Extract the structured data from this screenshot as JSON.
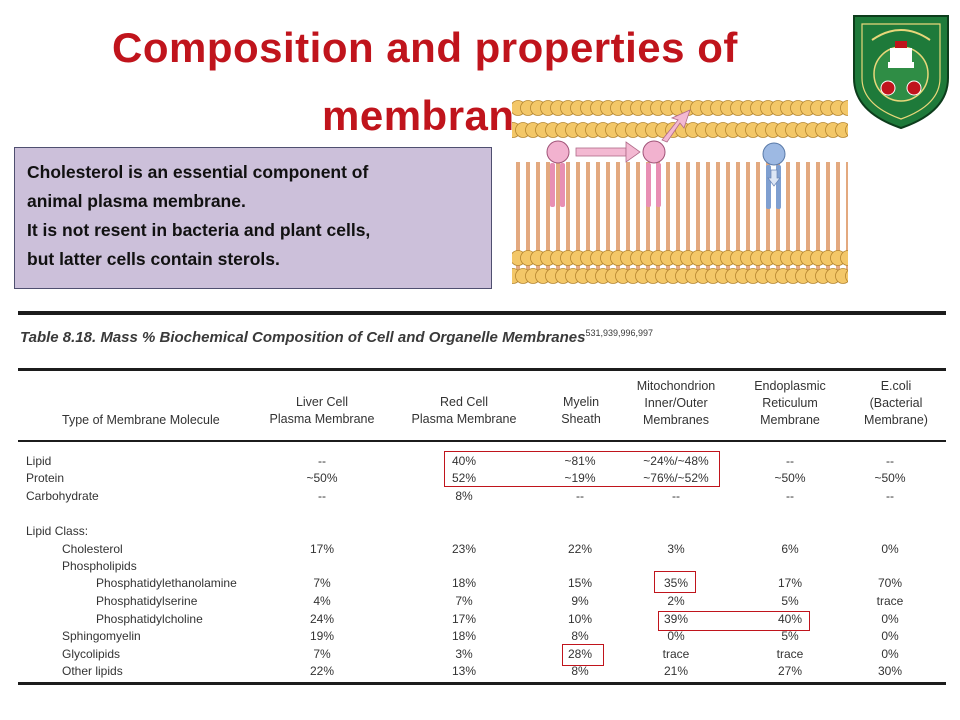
{
  "slide": {
    "title_line_1": "Composition and properties of",
    "title_line_2": "membranes",
    "callout_lines": [
      "Cholesterol is an essential component of",
      "animal plasma membrane.",
      "It is not resent in bacteria and plant cells,",
      "but latter cells  contain sterols."
    ]
  },
  "colors": {
    "title": "#c0141c",
    "callout_bg": "#ccc0da",
    "logo_green": "#1e7a3a",
    "highlight_box": "#c0141c"
  },
  "table": {
    "caption": "Table 8.18. Mass % Biochemical Composition of Cell and Organelle Membranes",
    "caption_refs": "531,939,996,997",
    "headers": [
      "Type of Membrane Molecule",
      "Liver Cell\nPlasma Membrane",
      "Red Cell\nPlasma Membrane",
      "Myelin\nSheath",
      "Mitochondrion\nInner/Outer\nMembranes",
      "Endoplasmic\nReticulum\nMembrane",
      "E.coli\n(Bacterial\nMembrane)"
    ],
    "rows": [
      {
        "label": "Lipid",
        "values": [
          "--",
          "40%",
          "~81%",
          "~24%/~48%",
          "--",
          "--"
        ]
      },
      {
        "label": "Protein",
        "values": [
          "~50%",
          "52%",
          "~19%",
          "~76%/~52%",
          "~50%",
          "~50%"
        ]
      },
      {
        "label": "Carbohydrate",
        "values": [
          "--",
          "8%",
          "--",
          "--",
          "--",
          "--"
        ]
      },
      {
        "label": "Lipid Class:",
        "values": [
          "",
          "",
          "",
          "",
          "",
          ""
        ]
      },
      {
        "label": "Cholesterol",
        "values": [
          "17%",
          "23%",
          "22%",
          "3%",
          "6%",
          "0%"
        ]
      },
      {
        "label": "Phospholipids",
        "values": [
          "",
          "",
          "",
          "",
          "",
          ""
        ]
      },
      {
        "label": "Phosphatidylethanolamine",
        "values": [
          "7%",
          "18%",
          "15%",
          "35%",
          "17%",
          "70%"
        ]
      },
      {
        "label": "Phosphatidylserine",
        "values": [
          "4%",
          "7%",
          "9%",
          "2%",
          "5%",
          "trace"
        ]
      },
      {
        "label": "Phosphatidylcholine",
        "values": [
          "24%",
          "17%",
          "10%",
          "39%",
          "40%",
          "0%"
        ]
      },
      {
        "label": "Sphingomyelin",
        "values": [
          "19%",
          "18%",
          "8%",
          "0%",
          "5%",
          "0%"
        ]
      },
      {
        "label": "Glycolipids",
        "values": [
          "7%",
          "3%",
          "28%",
          "trace",
          "trace",
          "0%"
        ]
      },
      {
        "label": "Other lipids",
        "values": [
          "22%",
          "13%",
          "8%",
          "21%",
          "27%",
          "30%"
        ]
      }
    ]
  }
}
